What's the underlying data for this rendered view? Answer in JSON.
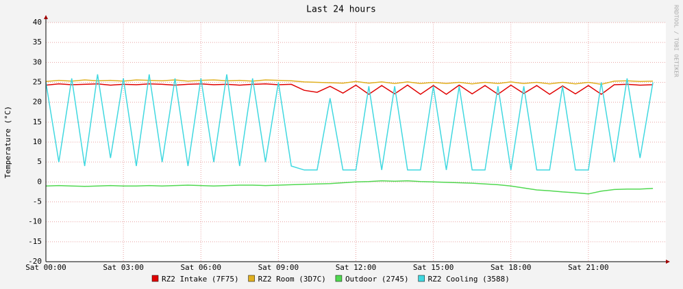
{
  "chart_data": {
    "type": "line",
    "title": "Last 24 hours",
    "y_label": "Temperature (°C)",
    "watermark": "RRDTOOL / TOBI OETIKER",
    "x": [
      0,
      0.5,
      1,
      1.5,
      2,
      2.5,
      3,
      3.5,
      4,
      4.5,
      5,
      5.5,
      6,
      6.5,
      7,
      7.5,
      8,
      8.5,
      9,
      9.5,
      10,
      10.5,
      11,
      11.5,
      12,
      12.5,
      13,
      13.5,
      14,
      14.5,
      15,
      15.5,
      16,
      16.5,
      17,
      17.5,
      18,
      18.5,
      19,
      19.5,
      20,
      20.5,
      21,
      21.5,
      22,
      22.5,
      23,
      23.5
    ],
    "xlim": [
      0,
      24
    ],
    "xticks": [
      {
        "value": 0,
        "label": "Sat 00:00"
      },
      {
        "value": 3,
        "label": "Sat 03:00"
      },
      {
        "value": 6,
        "label": "Sat 06:00"
      },
      {
        "value": 9,
        "label": "Sat 09:00"
      },
      {
        "value": 12,
        "label": "Sat 12:00"
      },
      {
        "value": 15,
        "label": "Sat 15:00"
      },
      {
        "value": 18,
        "label": "Sat 18:00"
      },
      {
        "value": 21,
        "label": "Sat 21:00"
      }
    ],
    "ylim": [
      -20,
      40
    ],
    "yticks": [
      -20,
      -15,
      -10,
      -5,
      0,
      5,
      10,
      15,
      20,
      25,
      30,
      35,
      40
    ],
    "grid": true,
    "series": [
      {
        "name": "RZ2 Intake (7F75)",
        "color": "#e00000",
        "values": [
          24.3,
          24.6,
          24.4,
          24.5,
          24.6,
          24.3,
          24.5,
          24.4,
          24.6,
          24.5,
          24.3,
          24.5,
          24.6,
          24.4,
          24.5,
          24.3,
          24.5,
          24.6,
          24.4,
          24.5,
          23,
          22.5,
          24,
          22.3,
          24.3,
          22,
          24.2,
          22.1,
          24.3,
          22,
          24.2,
          22,
          24.3,
          22.1,
          24.2,
          22,
          24.3,
          22.2,
          24.2,
          22,
          24.1,
          22.1,
          24.2,
          22,
          24.4,
          24.5,
          24.3,
          24.4
        ]
      },
      {
        "name": "RZ2 Room (3D7C)",
        "color": "#e0b020",
        "values": [
          25.2,
          25.5,
          25.3,
          25.6,
          25.4,
          25.5,
          25.3,
          25.6,
          25.5,
          25.4,
          25.6,
          25.3,
          25.5,
          25.6,
          25.4,
          25.5,
          25.3,
          25.6,
          25.5,
          25.4,
          25.1,
          25,
          24.9,
          24.8,
          25.2,
          24.8,
          25.1,
          24.7,
          25.1,
          24.7,
          25,
          24.7,
          25,
          24.6,
          25,
          24.7,
          25.1,
          24.7,
          25,
          24.6,
          25,
          24.6,
          25,
          24.5,
          25.3,
          25.4,
          25.2,
          25.3
        ]
      },
      {
        "name": "Outdoor (2745)",
        "color": "#50d850",
        "values": [
          -1,
          -0.9,
          -1,
          -1.1,
          -1,
          -0.9,
          -1,
          -1,
          -0.9,
          -1,
          -0.9,
          -0.8,
          -0.9,
          -1,
          -0.9,
          -0.8,
          -0.8,
          -0.9,
          -0.8,
          -0.7,
          -0.6,
          -0.5,
          -0.4,
          -0.2,
          0,
          0.1,
          0.3,
          0.2,
          0.3,
          0.1,
          0,
          -0.1,
          -0.2,
          -0.3,
          -0.5,
          -0.7,
          -1,
          -1.5,
          -2,
          -2.2,
          -2.5,
          -2.7,
          -3,
          -2.3,
          -1.9,
          -1.8,
          -1.8,
          -1.6
        ]
      },
      {
        "name": "RZ2 Cooling (3588)",
        "color": "#40d8e0",
        "values": [
          25,
          5,
          26,
          4,
          27,
          6,
          26,
          4,
          27,
          5,
          26,
          4,
          26,
          5,
          27,
          4,
          26,
          5,
          25,
          4,
          3,
          3,
          21,
          3,
          3,
          24,
          3,
          24,
          3,
          3,
          24,
          3,
          24,
          3,
          3,
          24,
          3,
          24,
          3,
          3,
          24,
          3,
          3,
          25,
          5,
          26,
          6,
          25
        ]
      }
    ]
  }
}
